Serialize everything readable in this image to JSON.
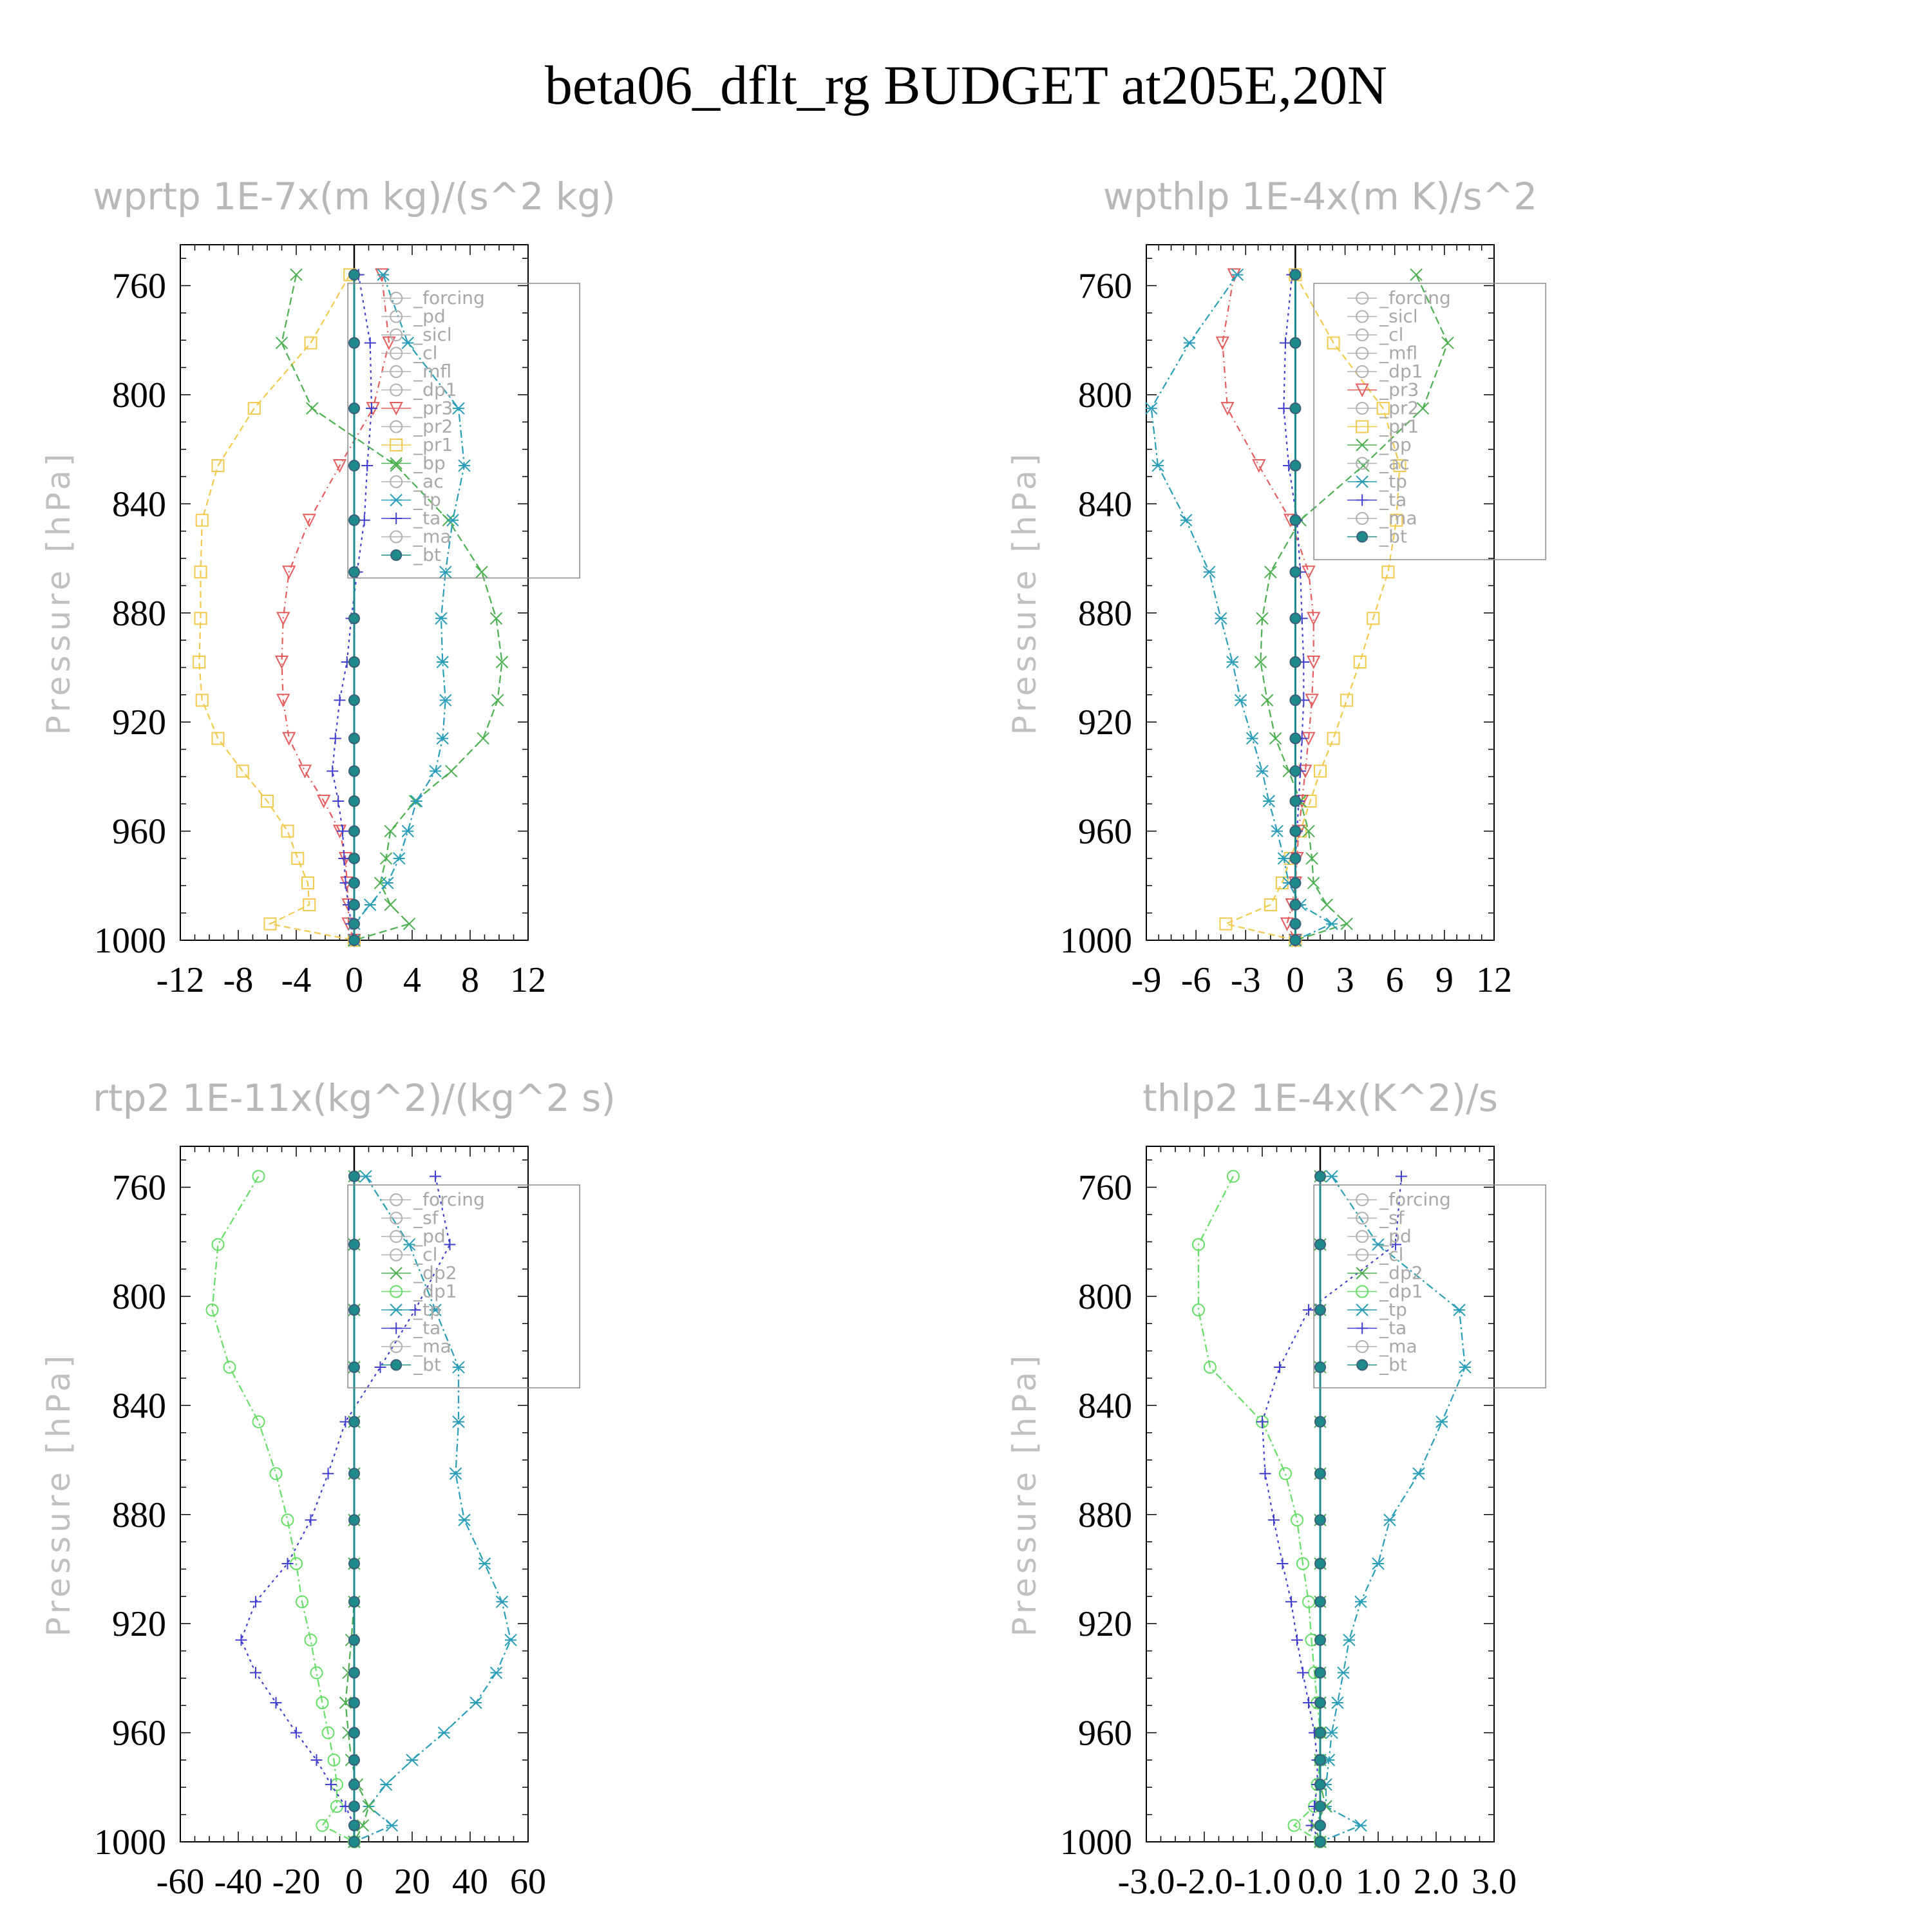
{
  "figure": {
    "title": "beta06_dflt_rg  BUDGET at205E,20N"
  },
  "chart_data": [
    {
      "type": "line",
      "title": "wprtp   1E-7x(m kg)/(s^2 kg)",
      "ylabel": "Pressure [hPa]",
      "xlim": [
        -12,
        12
      ],
      "ylim": [
        1000,
        745
      ],
      "xticks": [
        "-12",
        "-8",
        "-4",
        "0",
        "4",
        "8",
        "12"
      ],
      "xtick_values": [
        -12,
        -8,
        -4,
        0,
        4,
        8,
        12
      ],
      "yticks": [
        "760",
        "800",
        "840",
        "880",
        "920",
        "960",
        "1000"
      ],
      "ytick_values": [
        760,
        800,
        840,
        880,
        920,
        960,
        1000
      ],
      "y": [
        756,
        781,
        805,
        826,
        846,
        865,
        882,
        898,
        912,
        926,
        938,
        949,
        960,
        970,
        979,
        987,
        994,
        1000
      ],
      "legend": [
        "_forcing",
        "_pd",
        "_sicl",
        "_cl",
        "_mfl",
        "_dp1",
        "_pr3",
        "_pr2",
        "_pr1",
        "_bp",
        "_ac",
        "_tp",
        "_ta",
        "_ma",
        "_bt"
      ],
      "series": [
        {
          "name": "_pr1",
          "color": "#f2c94c",
          "marker": "square",
          "dash": "10,6",
          "values": [
            -0.3,
            -3,
            -6.9,
            -9.4,
            -10.5,
            -10.6,
            -10.6,
            -10.7,
            -10.5,
            -9.4,
            -7.7,
            -6,
            -4.6,
            -3.9,
            -3.2,
            -3.1,
            -5.8,
            0
          ]
        },
        {
          "name": "_pr3",
          "color": "#e55c5c",
          "marker": "triangle-down",
          "dash": "10,6,2,6",
          "values": [
            1.9,
            2.4,
            1.3,
            -1,
            -3.1,
            -4.5,
            -4.9,
            -5,
            -4.9,
            -4.5,
            -3.4,
            -2.1,
            -1,
            -0.6,
            -0.5,
            -0.4,
            -0.4,
            0
          ]
        },
        {
          "name": "_bp",
          "color": "#4caf50",
          "marker": "x",
          "dash": "12,6",
          "values": [
            -4,
            -5,
            -2.9,
            2.9,
            6.5,
            8.8,
            9.8,
            10.2,
            9.9,
            8.9,
            6.7,
            4.2,
            2.5,
            2.2,
            1.8,
            2.5,
            3.8,
            0
          ]
        },
        {
          "name": "_tp",
          "color": "#2a9db8",
          "marker": "star",
          "dash": "12,5,3,5",
          "values": [
            2,
            3.7,
            7.2,
            7.6,
            6.8,
            6.3,
            6,
            6.1,
            6.3,
            6.1,
            5.6,
            4.3,
            3.7,
            3.1,
            2.3,
            1.1,
            0,
            0
          ]
        },
        {
          "name": "_ta",
          "color": "#4040d0",
          "marker": "plus",
          "dash": "4,6",
          "values": [
            0.3,
            1.1,
            1.2,
            0.9,
            0.7,
            0.2,
            -0.2,
            -0.5,
            -1,
            -1.3,
            -1.5,
            -1.1,
            -0.8,
            -0.7,
            -0.6,
            -0.4,
            -0.2,
            0
          ]
        },
        {
          "name": "_bt",
          "color": "#1f8a8a",
          "marker": "dot",
          "dash": "",
          "values": [
            0,
            0,
            0,
            0,
            0,
            0,
            0,
            0,
            0,
            0,
            0,
            0,
            0,
            0,
            0,
            0,
            0,
            0
          ]
        }
      ]
    },
    {
      "type": "line",
      "title": "wpthlp   1E-4x(m K)/s^2",
      "ylabel": "Pressure [hPa]",
      "xlim": [
        -9,
        12
      ],
      "ylim": [
        1000,
        745
      ],
      "xticks": [
        "-9",
        "-6",
        "-3",
        "0",
        "3",
        "6",
        "9",
        "12"
      ],
      "xtick_values": [
        -9,
        -6,
        -3,
        0,
        3,
        6,
        9,
        12
      ],
      "yticks": [
        "760",
        "800",
        "840",
        "880",
        "920",
        "960",
        "1000"
      ],
      "ytick_values": [
        760,
        800,
        840,
        880,
        920,
        960,
        1000
      ],
      "y": [
        756,
        781,
        805,
        826,
        846,
        865,
        882,
        898,
        912,
        926,
        938,
        949,
        960,
        970,
        979,
        987,
        994,
        1000
      ],
      "legend": [
        "_forcing",
        "_sicl",
        "_cl",
        "_mfl",
        "_dp1",
        "_pr3",
        "_pr2",
        "_pr1",
        "_bp",
        "_ac",
        "_tp",
        "_ta",
        "_ma",
        "_bt"
      ],
      "series": [
        {
          "name": "_pr1",
          "color": "#f2c94c",
          "marker": "square",
          "dash": "10,6",
          "values": [
            0,
            2.3,
            5.3,
            6.3,
            6.1,
            5.6,
            4.7,
            3.9,
            3.1,
            2.3,
            1.5,
            0.9,
            0.3,
            -0.3,
            -0.8,
            -1.5,
            -4.2,
            0
          ]
        },
        {
          "name": "_pr3",
          "color": "#e55c5c",
          "marker": "triangle-down",
          "dash": "10,6,2,6",
          "values": [
            -3.7,
            -4.4,
            -4.1,
            -2.2,
            -0.3,
            0.8,
            1.1,
            1.1,
            1,
            0.8,
            0.6,
            0.4,
            0.2,
            0.1,
            0,
            -0.2,
            -0.5,
            0
          ]
        },
        {
          "name": "_bp",
          "color": "#4caf50",
          "marker": "x",
          "dash": "12,6",
          "values": [
            7.3,
            9.2,
            7.7,
            4.1,
            0.3,
            -1.5,
            -2,
            -2.1,
            -1.7,
            -1.2,
            -0.4,
            0.3,
            0.8,
            1,
            1.1,
            1.9,
            3.1,
            0
          ]
        },
        {
          "name": "_tp",
          "color": "#2a9db8",
          "marker": "star",
          "dash": "12,5,3,5",
          "values": [
            -3.5,
            -6.4,
            -8.7,
            -8.3,
            -6.6,
            -5.2,
            -4.5,
            -3.8,
            -3.3,
            -2.6,
            -2,
            -1.6,
            -1.1,
            -0.7,
            -0.4,
            0.3,
            2.2,
            0
          ]
        },
        {
          "name": "_ta",
          "color": "#4040d0",
          "marker": "plus",
          "dash": "4,6",
          "values": [
            -0.2,
            -0.6,
            -0.7,
            -0.4,
            0.1,
            0.3,
            0.4,
            0.5,
            0.5,
            0.4,
            0.3,
            0.2,
            0.1,
            0,
            0,
            0,
            0,
            0
          ]
        },
        {
          "name": "_bt",
          "color": "#1f8a8a",
          "marker": "dot",
          "dash": "",
          "values": [
            0,
            0,
            0,
            0,
            0,
            0,
            0,
            0,
            0,
            0,
            0,
            0,
            0,
            0,
            0,
            0,
            0,
            0
          ]
        }
      ]
    },
    {
      "type": "line",
      "title": "rtp2   1E-11x(kg^2)/(kg^2 s)",
      "ylabel": "Pressure [hPa]",
      "xlim": [
        -60,
        60
      ],
      "ylim": [
        1000,
        745
      ],
      "xticks": [
        "-60",
        "-40",
        "-20",
        "0",
        "20",
        "40",
        "60"
      ],
      "xtick_values": [
        -60,
        -40,
        -20,
        0,
        20,
        40,
        60
      ],
      "yticks": [
        "760",
        "800",
        "840",
        "880",
        "920",
        "960",
        "1000"
      ],
      "ytick_values": [
        760,
        800,
        840,
        880,
        920,
        960,
        1000
      ],
      "y": [
        756,
        781,
        805,
        826,
        846,
        865,
        882,
        898,
        912,
        926,
        938,
        949,
        960,
        970,
        979,
        987,
        994,
        1000
      ],
      "legend": [
        "_forcing",
        "_sf",
        "_pd",
        "_cl",
        "_dp2",
        "_dp1",
        "_tp",
        "_ta",
        "_ma",
        "_bt"
      ],
      "series": [
        {
          "name": "_dp1",
          "color": "#66dd66",
          "marker": "circle",
          "dash": "12,5,3,5",
          "values": [
            -33,
            -47,
            -49,
            -43,
            -33,
            -27,
            -23,
            -20,
            -18,
            -15,
            -13,
            -11,
            -9,
            -7,
            -6,
            -6,
            -11,
            0
          ]
        },
        {
          "name": "_tp",
          "color": "#2a9db8",
          "marker": "star",
          "dash": "12,5,3,5",
          "values": [
            4,
            19,
            28,
            36,
            36,
            35,
            38,
            45,
            51,
            54,
            49,
            42,
            31,
            20,
            11,
            5,
            13,
            0
          ]
        },
        {
          "name": "_ta",
          "color": "#4040d0",
          "marker": "plus",
          "dash": "4,6",
          "values": [
            28,
            33,
            21,
            9,
            -3,
            -9,
            -15,
            -23,
            -34,
            -39,
            -34,
            -27,
            -20,
            -13,
            -8,
            -3,
            0,
            0
          ]
        },
        {
          "name": "_dp2",
          "color": "#4caf50",
          "marker": "x",
          "dash": "12,6",
          "values": [
            0,
            0,
            0,
            0,
            0,
            0,
            0,
            0,
            0,
            -1,
            -2,
            -3,
            -2,
            -1,
            1,
            5,
            3,
            0
          ]
        },
        {
          "name": "_bt",
          "color": "#1f8a8a",
          "marker": "dot",
          "dash": "",
          "values": [
            0,
            0,
            0,
            0,
            0,
            0,
            0,
            0,
            0,
            0,
            0,
            0,
            0,
            0,
            0,
            0,
            0,
            0
          ]
        }
      ]
    },
    {
      "type": "line",
      "title": "thlp2   1E-4x(K^2)/s",
      "ylabel": "Pressure [hPa]",
      "xlim": [
        -3.0,
        3.0
      ],
      "ylim": [
        1000,
        745
      ],
      "xticks": [
        "-3.0",
        "-2.0",
        "-1.0",
        "0.0",
        "1.0",
        "2.0",
        "3.0"
      ],
      "xtick_values": [
        -3,
        -2,
        -1,
        0,
        1,
        2,
        3
      ],
      "yticks": [
        "760",
        "800",
        "840",
        "880",
        "920",
        "960",
        "1000"
      ],
      "ytick_values": [
        760,
        800,
        840,
        880,
        920,
        960,
        1000
      ],
      "y": [
        756,
        781,
        805,
        826,
        846,
        865,
        882,
        898,
        912,
        926,
        938,
        949,
        960,
        970,
        979,
        987,
        994,
        1000
      ],
      "legend": [
        "_forcing",
        "_sf",
        "_pd",
        "_cl",
        "_dp2",
        "_dp1",
        "_tp",
        "_ta",
        "_ma",
        "_bt"
      ],
      "series": [
        {
          "name": "_dp1",
          "color": "#66dd66",
          "marker": "circle",
          "dash": "12,5,3,5",
          "values": [
            -1.5,
            -2.1,
            -2.1,
            -1.9,
            -1,
            -0.6,
            -0.4,
            -0.3,
            -0.2,
            -0.15,
            -0.1,
            -0.05,
            0,
            0,
            -0.05,
            -0.1,
            -0.45,
            0
          ]
        },
        {
          "name": "_tp",
          "color": "#2a9db8",
          "marker": "star",
          "dash": "12,5,3,5",
          "values": [
            0.2,
            1.0,
            2.4,
            2.5,
            2.1,
            1.7,
            1.2,
            1.0,
            0.7,
            0.5,
            0.4,
            0.3,
            0.2,
            0.15,
            0.1,
            0.1,
            0.7,
            0
          ]
        },
        {
          "name": "_ta",
          "color": "#4040d0",
          "marker": "plus",
          "dash": "4,6",
          "values": [
            1.4,
            1.3,
            -0.2,
            -0.7,
            -1,
            -0.95,
            -0.8,
            -0.65,
            -0.5,
            -0.4,
            -0.3,
            -0.2,
            -0.1,
            -0.05,
            -0.05,
            -0.1,
            -0.15,
            0
          ]
        },
        {
          "name": "_dp2",
          "color": "#4caf50",
          "marker": "x",
          "dash": "12,6",
          "values": [
            0,
            0,
            0,
            0,
            0,
            0,
            0,
            0,
            0,
            0,
            0,
            0,
            0,
            0,
            0,
            0.1,
            -0.1,
            0
          ]
        },
        {
          "name": "_bt",
          "color": "#1f8a8a",
          "marker": "dot",
          "dash": "",
          "values": [
            0,
            0,
            0,
            0,
            0,
            0,
            0,
            0,
            0,
            0,
            0,
            0,
            0,
            0,
            0,
            0,
            0,
            0
          ]
        }
      ]
    }
  ]
}
